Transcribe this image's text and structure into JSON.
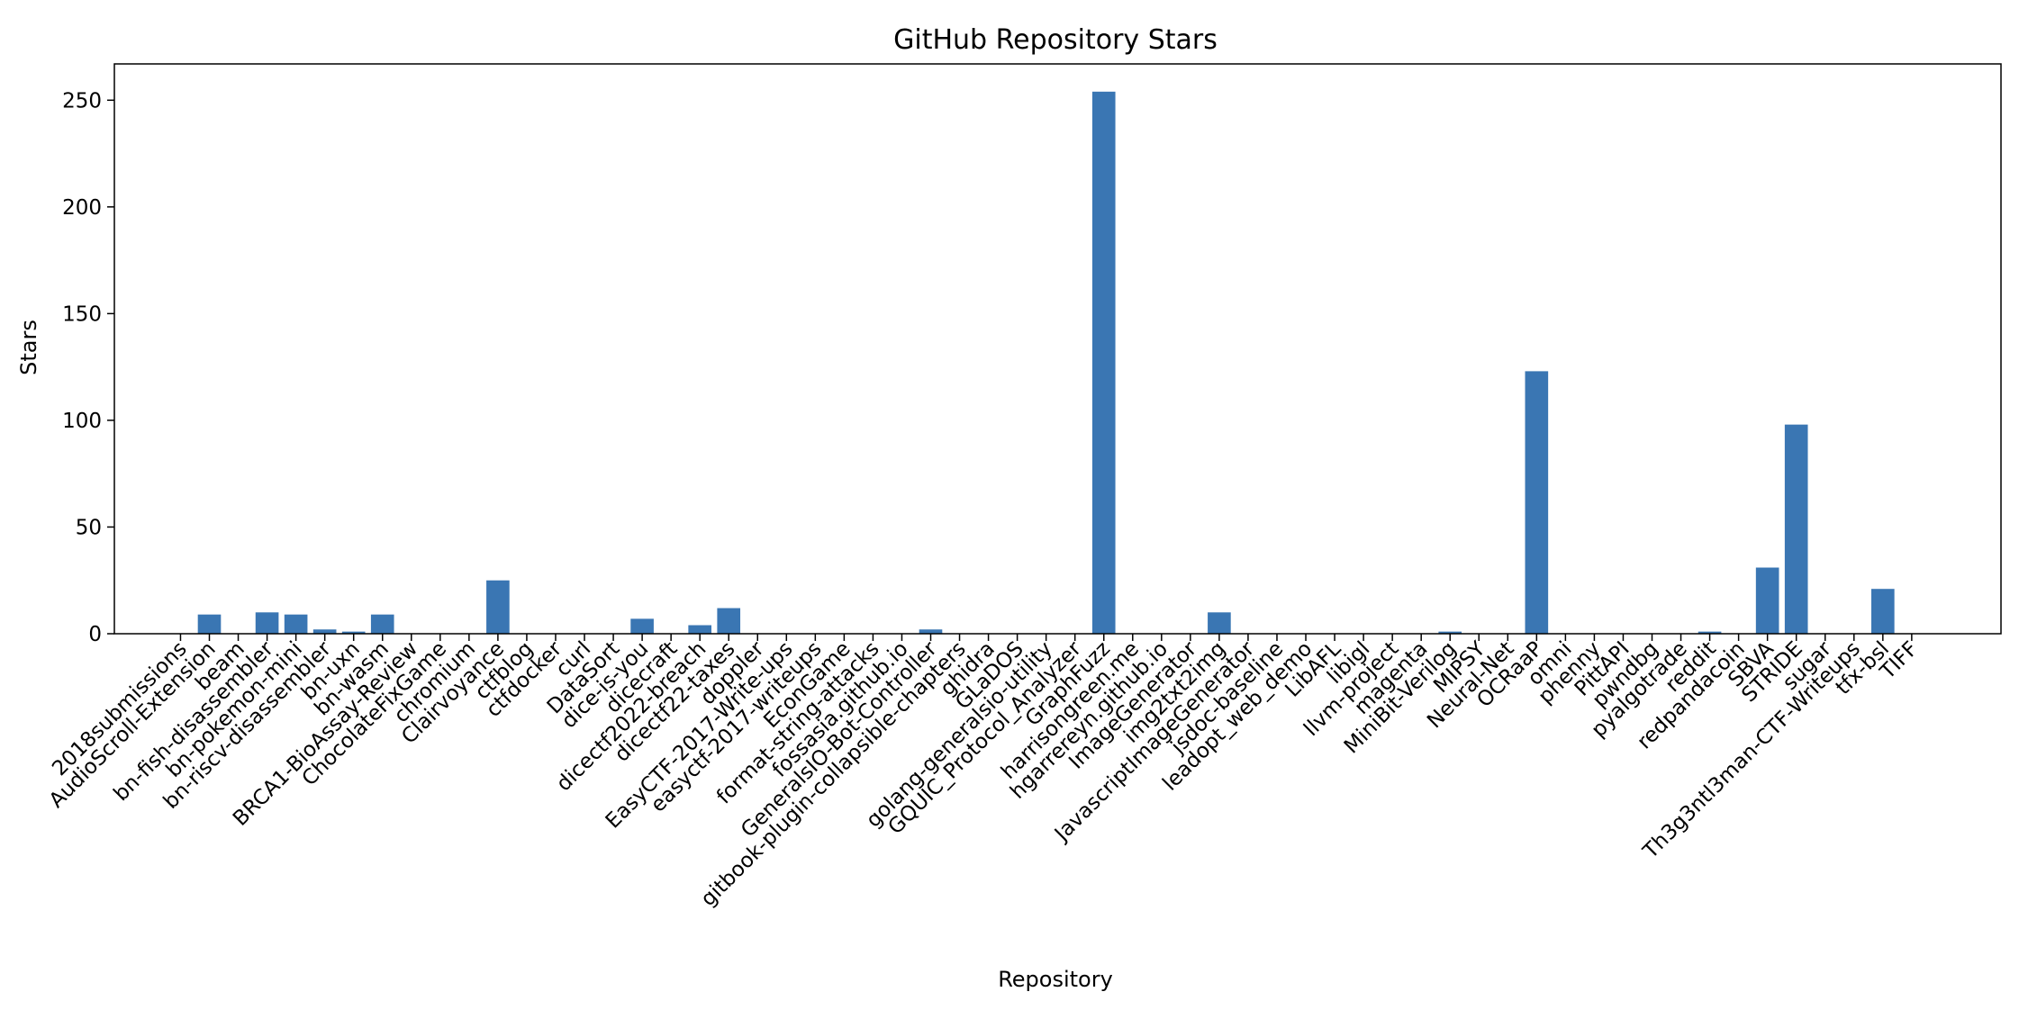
{
  "chart_data": {
    "type": "bar",
    "title": "GitHub Repository Stars",
    "xlabel": "Repository",
    "ylabel": "Stars",
    "ylim": [
      0,
      267
    ],
    "yticks": [
      0,
      50,
      100,
      150,
      200,
      250
    ],
    "grid": false,
    "bar_color": "#3a76b3",
    "categories": [
      "2018submissions",
      "AudioScroll-Extension",
      "beam",
      "bn-fish-disassembler",
      "bn-pokemon-mini",
      "bn-riscv-disassembler",
      "bn-uxn",
      "bn-wasm",
      "BRCA1-BioAssay-Review",
      "ChocolateFixGame",
      "chromium",
      "Clairvoyance",
      "ctfblog",
      "ctfdocker",
      "curl",
      "DataSort",
      "dice-is-you",
      "dicecraft",
      "dicectf2022-breach",
      "dicectf22-taxes",
      "doppler",
      "EasyCTF-2017-Write-ups",
      "easyctf-2017-writeups",
      "EconGame",
      "format-string-attacks",
      "fossasia.github.io",
      "GeneralsIO-Bot-Controller",
      "gitbook-plugin-collapsible-chapters",
      "ghidra",
      "GLaDOS",
      "golang-generalsio-utility",
      "GQUIC_Protocol_Analyzer",
      "GraphFuzz",
      "harrisongreen.me",
      "hgarrereyn.github.io",
      "ImageGenerator",
      "img2txt2img",
      "JavascriptImageGenerator",
      "jsdoc-baseline",
      "leadopt_web_demo",
      "LibAFL",
      "libigl",
      "llvm-project",
      "magenta",
      "MiniBit-Verilog",
      "MIPSY",
      "Neural-Net",
      "OCRaaP",
      "omni",
      "phenny",
      "PittAPI",
      "pwndbg",
      "pyalgotrade",
      "reddit",
      "redpandacoin",
      "SBVA",
      "STRIDE",
      "sugar",
      "Th3g3ntl3man-CTF-Writeups",
      "tfx-bsl",
      "TIFF"
    ],
    "values": [
      0,
      9,
      0,
      10,
      9,
      2,
      1,
      9,
      0,
      0,
      0,
      25,
      0,
      0,
      0,
      0,
      7,
      0,
      4,
      12,
      0,
      0,
      0,
      0,
      0,
      0,
      2,
      0,
      0,
      0,
      0,
      0,
      254,
      0,
      0,
      0,
      10,
      0,
      0,
      0,
      0,
      0,
      0,
      0,
      1,
      0,
      0,
      123,
      0,
      0,
      0,
      0,
      0,
      1,
      0,
      31,
      98,
      0,
      0,
      21,
      0
    ]
  }
}
